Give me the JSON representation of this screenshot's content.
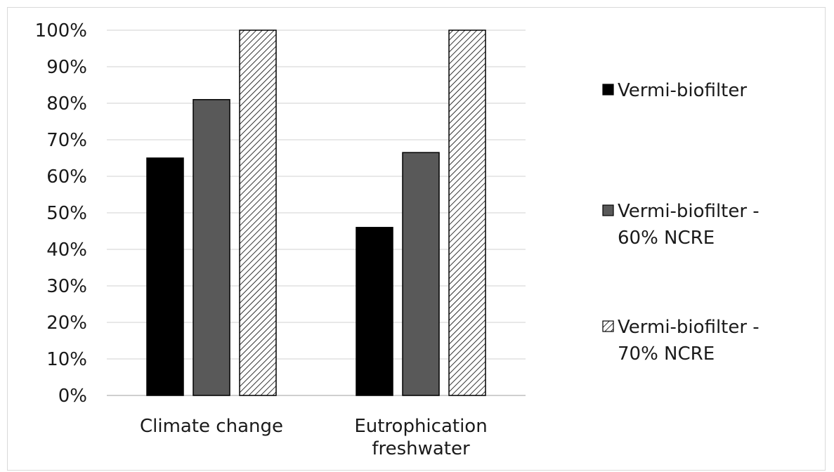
{
  "colors": {
    "grid": "#d9d9d9",
    "axis": "#bfbfbf",
    "bar_outline": "#000000",
    "text": "#1a1a1a"
  },
  "chart_data": {
    "type": "bar",
    "title": "",
    "xlabel": "",
    "ylabel": "",
    "ylim": [
      0,
      100
    ],
    "y_tick_format": "percent",
    "y_ticks": [
      "0%",
      "10%",
      "20%",
      "30%",
      "40%",
      "50%",
      "60%",
      "70%",
      "80%",
      "90%",
      "100%"
    ],
    "grid": true,
    "legend_position": "right",
    "categories": [
      {
        "lines": [
          "Climate change"
        ]
      },
      {
        "lines": [
          "Eutrophication",
          "freshwater"
        ]
      }
    ],
    "series": [
      {
        "name_lines": [
          "Vermi-biofilter"
        ],
        "fill": "#000000",
        "pattern": "solid",
        "values": [
          65,
          46
        ]
      },
      {
        "name_lines": [
          "Vermi-biofilter -",
          "60% NCRE"
        ],
        "fill": "#595959",
        "pattern": "solid",
        "values": [
          81,
          66.5
        ]
      },
      {
        "name_lines": [
          "Vermi-biofilter -",
          "70% NCRE"
        ],
        "fill": "#ffffff",
        "pattern": "diagonal-hatch",
        "values": [
          100,
          100
        ]
      }
    ]
  }
}
